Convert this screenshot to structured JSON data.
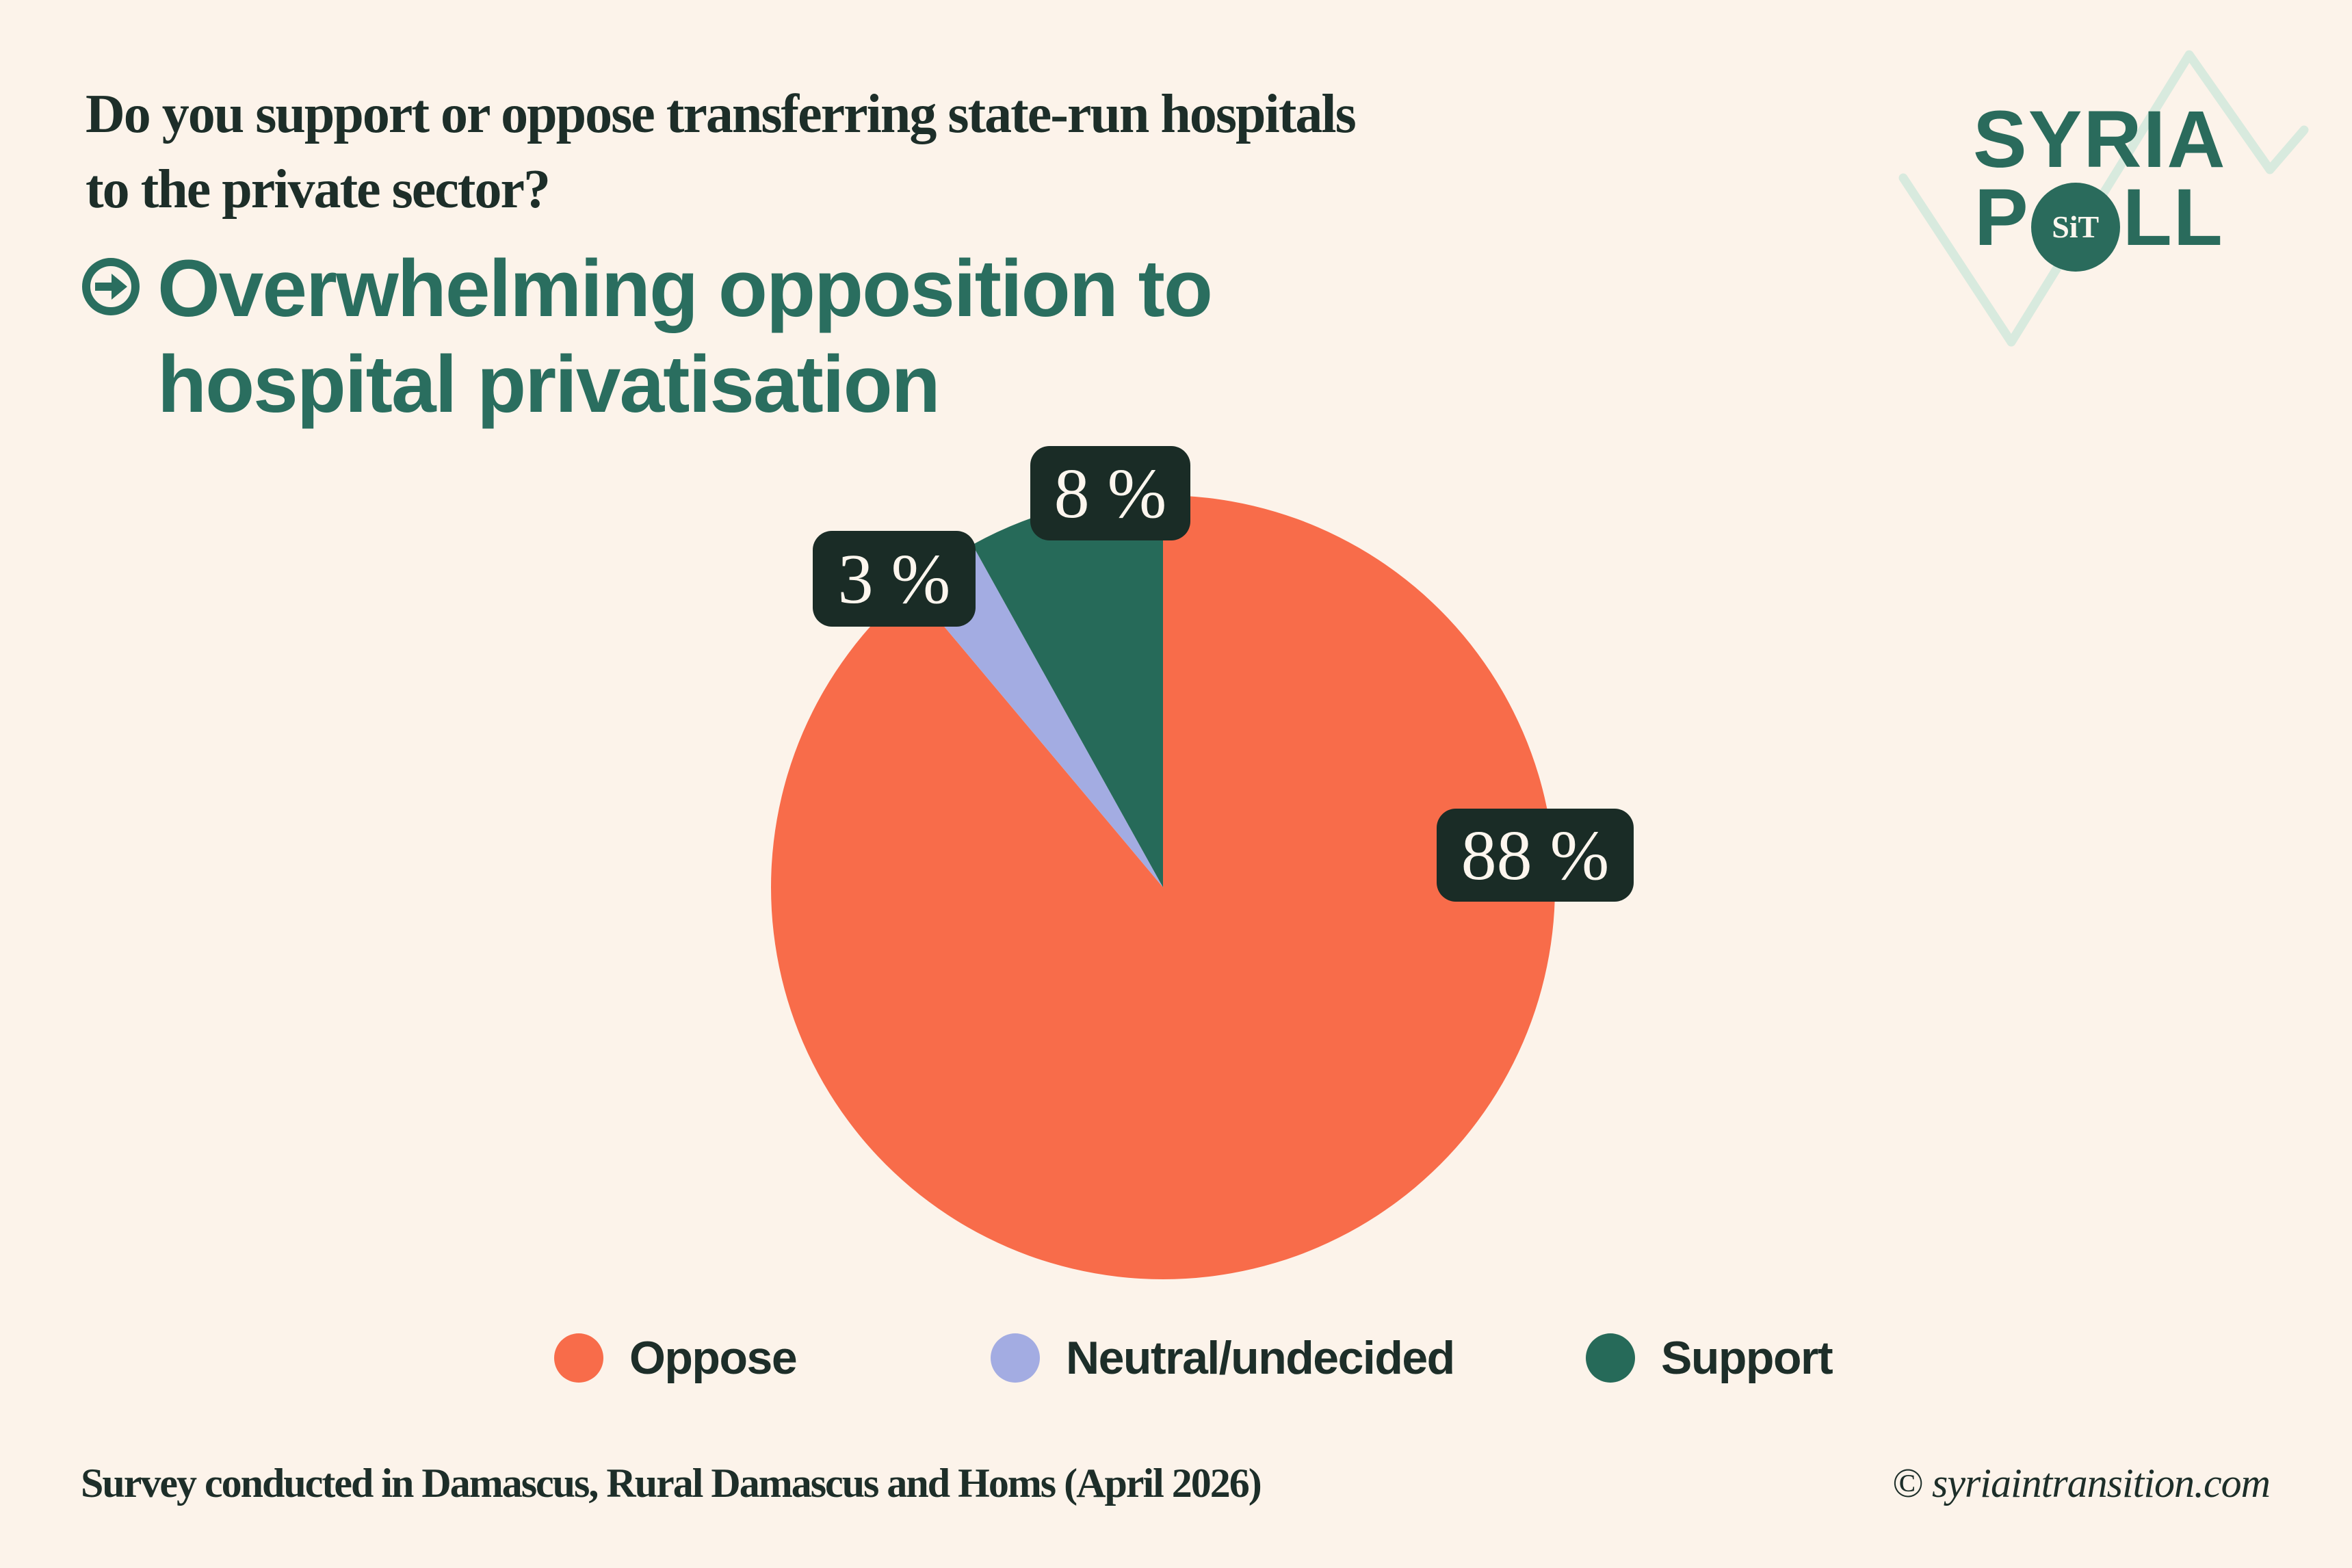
{
  "colors": {
    "background": "#fcf3ea",
    "text_dark": "#1d2e29",
    "brand_green": "#2a6e5f",
    "logo_green": "#2a6b5c",
    "badge_background": "#1a2c26",
    "badge_text": "#fdf6ee",
    "mint_zigzag": "#d8eade",
    "oppose_orange": "#f86c4a",
    "neutral_lavender": "#a3ace2",
    "support_green": "#266a59"
  },
  "question": {
    "lines": [
      "Do you support or oppose transferring state-run hospitals",
      "to the private sector?"
    ]
  },
  "headline": {
    "lines": [
      "Overwhelming opposition to",
      "hospital privatisation"
    ]
  },
  "logo": {
    "line1": "SYRIA",
    "line2_start": "P",
    "badge": "SiT",
    "line2_end": "LL"
  },
  "chart_data": {
    "type": "pie",
    "categories": [
      "Oppose",
      "Neutral/undecided",
      "Support"
    ],
    "values": [
      88,
      3,
      8
    ],
    "unit": "%",
    "labels": [
      "88 %",
      "3 %",
      "8 %"
    ],
    "colors": [
      "#f86c4a",
      "#a3ace2",
      "#266a59"
    ],
    "start_angle_deg": 0,
    "direction": "clockwise",
    "legend_position": "bottom",
    "title": "Overwhelming opposition to hospital privatisation"
  },
  "legend": {
    "items": [
      {
        "label": "Oppose",
        "color": "#f86c4a"
      },
      {
        "label": "Neutral/undecided",
        "color": "#a3ace2"
      },
      {
        "label": "Support",
        "color": "#266a59"
      }
    ]
  },
  "footer": {
    "left": "Survey conducted in Damascus, Rural Damascus and Homs (April 2026)",
    "right": "© syriaintransition.com"
  }
}
